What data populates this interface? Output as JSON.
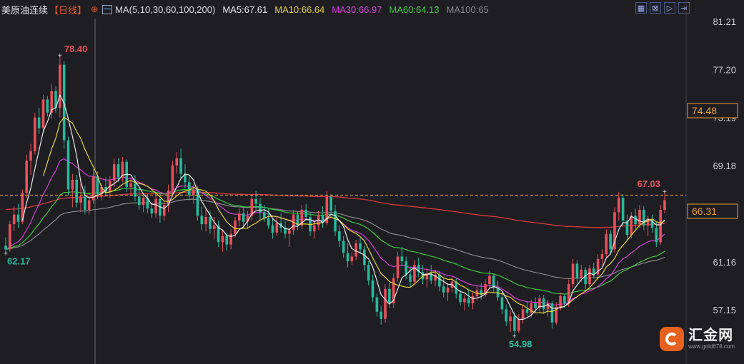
{
  "header": {
    "title": "美原油连续",
    "period": "【日线】",
    "ma_params": "MA(5,10,30,60,100,200)",
    "ma5": "MA5:67.61",
    "ma10": "MA10:66.64",
    "ma30": "MA30:66.97",
    "ma60": "MA60:64.13",
    "ma100": "MA100:65"
  },
  "logo": {
    "name": "汇金网",
    "url": "www.gold678.com"
  },
  "colors": {
    "background": "#1d1d22",
    "up": "#e8505b",
    "down": "#26b89a",
    "ma5": "#e8e8e8",
    "ma10": "#e6d33a",
    "ma30": "#d63dd6",
    "ma60": "#3cc83c",
    "ma100": "#8a8a8a",
    "ma200": "#d93a3a",
    "price_line": "#f0a030"
  },
  "chart_data": {
    "type": "candlestick",
    "y_ticks": [
      "81.21",
      "77.20",
      "73.19",
      "69.18",
      "61.16",
      "57.15"
    ],
    "ylim": [
      54.0,
      81.21
    ],
    "current_price": "66.31",
    "reference_price": "74.48",
    "annotations": {
      "high": "78.40",
      "low": "54.98",
      "start_low": "62.17",
      "recent_high": "67.03"
    },
    "candles": [
      [
        62.5,
        63.2,
        61.9,
        62.2
      ],
      [
        62.2,
        64.6,
        62.0,
        64.3
      ],
      [
        64.3,
        65.8,
        63.7,
        65.1
      ],
      [
        65.1,
        66.0,
        64.0,
        64.5
      ],
      [
        64.5,
        67.2,
        64.3,
        66.9
      ],
      [
        66.9,
        70.1,
        66.5,
        69.6
      ],
      [
        69.6,
        71.0,
        68.4,
        70.4
      ],
      [
        70.4,
        73.6,
        70.1,
        73.2
      ],
      [
        73.2,
        74.0,
        71.8,
        72.3
      ],
      [
        72.3,
        75.1,
        71.9,
        74.7
      ],
      [
        74.7,
        75.0,
        73.3,
        73.6
      ],
      [
        73.6,
        76.0,
        73.1,
        75.4
      ],
      [
        75.4,
        75.8,
        73.6,
        74.0
      ],
      [
        74.0,
        78.4,
        73.2,
        77.6
      ],
      [
        77.6,
        77.9,
        70.6,
        71.3
      ],
      [
        71.3,
        71.6,
        66.7,
        67.2
      ],
      [
        67.2,
        68.5,
        65.7,
        68.0
      ],
      [
        68.0,
        68.4,
        65.7,
        66.1
      ],
      [
        66.1,
        67.7,
        65.3,
        66.6
      ],
      [
        66.6,
        67.5,
        65.1,
        65.5
      ],
      [
        65.5,
        66.8,
        65.1,
        66.3
      ],
      [
        66.3,
        68.9,
        66.0,
        68.3
      ],
      [
        68.3,
        68.7,
        66.4,
        66.8
      ],
      [
        66.8,
        67.6,
        66.3,
        67.4
      ],
      [
        67.4,
        68.2,
        66.6,
        67.0
      ],
      [
        67.0,
        68.3,
        66.5,
        67.9
      ],
      [
        67.9,
        69.8,
        67.4,
        69.3
      ],
      [
        69.3,
        69.8,
        67.8,
        68.2
      ],
      [
        68.2,
        69.9,
        67.8,
        69.5
      ],
      [
        69.5,
        69.7,
        67.0,
        67.4
      ],
      [
        67.4,
        68.1,
        66.7,
        67.7
      ],
      [
        67.7,
        68.4,
        66.2,
        66.6
      ],
      [
        66.6,
        67.3,
        65.5,
        65.9
      ],
      [
        65.9,
        66.8,
        65.3,
        66.5
      ],
      [
        66.5,
        66.8,
        65.2,
        65.6
      ],
      [
        65.6,
        66.1,
        64.8,
        65.2
      ],
      [
        65.2,
        66.9,
        64.8,
        66.4
      ],
      [
        66.4,
        66.9,
        64.4,
        65.0
      ],
      [
        65.0,
        66.2,
        64.6,
        65.9
      ],
      [
        65.9,
        67.6,
        65.3,
        67.1
      ],
      [
        67.1,
        69.6,
        66.6,
        69.2
      ],
      [
        69.2,
        70.3,
        68.5,
        69.8
      ],
      [
        69.8,
        70.6,
        68.1,
        68.5
      ],
      [
        68.5,
        69.3,
        67.3,
        67.8
      ],
      [
        67.8,
        68.4,
        66.3,
        66.7
      ],
      [
        66.7,
        67.6,
        66.0,
        67.2
      ],
      [
        67.2,
        67.5,
        64.6,
        65.0
      ],
      [
        65.0,
        65.8,
        63.8,
        64.3
      ],
      [
        64.3,
        65.6,
        63.7,
        64.9
      ],
      [
        64.9,
        65.4,
        63.5,
        63.9
      ],
      [
        63.9,
        64.9,
        63.1,
        64.2
      ],
      [
        64.2,
        64.6,
        62.4,
        62.8
      ],
      [
        62.8,
        63.8,
        62.0,
        63.3
      ],
      [
        63.3,
        63.6,
        62.1,
        62.6
      ],
      [
        62.6,
        63.9,
        62.2,
        63.5
      ],
      [
        63.5,
        64.9,
        63.2,
        64.6
      ],
      [
        64.6,
        65.6,
        64.1,
        65.2
      ],
      [
        65.2,
        65.7,
        64.0,
        64.5
      ],
      [
        64.5,
        65.4,
        63.9,
        65.0
      ],
      [
        65.0,
        66.8,
        64.6,
        66.4
      ],
      [
        66.4,
        67.1,
        65.5,
        66.0
      ],
      [
        66.0,
        66.5,
        64.7,
        65.3
      ],
      [
        65.3,
        65.9,
        64.5,
        64.8
      ],
      [
        64.8,
        65.6,
        63.9,
        64.2
      ],
      [
        64.2,
        64.8,
        63.1,
        63.6
      ],
      [
        63.6,
        64.9,
        63.3,
        64.4
      ],
      [
        64.4,
        65.2,
        63.6,
        64.0
      ],
      [
        64.0,
        64.6,
        63.1,
        63.5
      ],
      [
        63.5,
        64.0,
        62.4,
        63.8
      ],
      [
        63.8,
        65.5,
        63.4,
        65.1
      ],
      [
        65.1,
        65.4,
        63.8,
        64.2
      ],
      [
        64.2,
        65.9,
        63.9,
        65.5
      ],
      [
        65.5,
        66.0,
        64.6,
        64.9
      ],
      [
        64.9,
        65.3,
        63.3,
        63.7
      ],
      [
        63.7,
        64.5,
        63.1,
        64.2
      ],
      [
        64.2,
        65.4,
        63.8,
        65.0
      ],
      [
        65.0,
        65.8,
        64.0,
        64.4
      ],
      [
        64.4,
        67.1,
        64.2,
        66.6
      ],
      [
        66.6,
        66.8,
        65.0,
        65.4
      ],
      [
        65.4,
        65.9,
        63.3,
        63.7
      ],
      [
        63.7,
        64.2,
        62.4,
        62.9
      ],
      [
        62.9,
        63.3,
        61.5,
        61.9
      ],
      [
        61.9,
        62.7,
        60.7,
        61.2
      ],
      [
        61.2,
        62.0,
        60.9,
        61.6
      ],
      [
        61.6,
        63.0,
        61.3,
        62.7
      ],
      [
        62.7,
        63.2,
        61.8,
        62.2
      ],
      [
        62.2,
        62.5,
        60.4,
        60.9
      ],
      [
        60.9,
        61.2,
        59.2,
        59.6
      ],
      [
        59.6,
        60.1,
        57.8,
        58.2
      ],
      [
        58.2,
        58.5,
        56.6,
        57.0
      ],
      [
        57.0,
        57.5,
        55.9,
        56.4
      ],
      [
        56.4,
        59.3,
        56.1,
        58.9
      ],
      [
        58.9,
        59.4,
        57.3,
        57.7
      ],
      [
        57.7,
        60.2,
        57.3,
        59.8
      ],
      [
        59.8,
        62.0,
        59.5,
        61.6
      ],
      [
        61.6,
        62.4,
        60.8,
        61.2
      ],
      [
        61.2,
        61.6,
        59.7,
        60.1
      ],
      [
        60.1,
        60.8,
        59.1,
        59.5
      ],
      [
        59.5,
        61.3,
        59.2,
        60.9
      ],
      [
        60.9,
        61.5,
        59.9,
        60.3
      ],
      [
        60.3,
        60.9,
        59.3,
        59.7
      ],
      [
        59.7,
        60.6,
        59.0,
        60.2
      ],
      [
        60.2,
        60.9,
        59.3,
        59.6
      ],
      [
        59.6,
        60.5,
        59.1,
        60.1
      ],
      [
        60.1,
        60.4,
        58.7,
        59.1
      ],
      [
        59.1,
        59.8,
        58.2,
        58.6
      ],
      [
        58.6,
        59.4,
        57.9,
        59.0
      ],
      [
        59.0,
        59.9,
        58.6,
        59.5
      ],
      [
        59.5,
        59.8,
        58.1,
        58.5
      ],
      [
        58.5,
        58.8,
        57.5,
        57.8
      ],
      [
        57.8,
        58.4,
        57.1,
        58.1
      ],
      [
        58.1,
        58.9,
        57.4,
        57.7
      ],
      [
        57.7,
        58.6,
        57.2,
        58.3
      ],
      [
        58.3,
        59.2,
        57.9,
        58.8
      ],
      [
        58.8,
        59.4,
        58.0,
        58.4
      ],
      [
        58.4,
        59.7,
        58.2,
        59.3
      ],
      [
        59.3,
        60.4,
        58.9,
        60.0
      ],
      [
        60.0,
        60.2,
        58.6,
        59.0
      ],
      [
        59.0,
        59.6,
        57.9,
        58.2
      ],
      [
        58.2,
        58.6,
        56.8,
        57.2
      ],
      [
        57.2,
        57.6,
        55.8,
        56.2
      ],
      [
        56.2,
        57.1,
        55.3,
        56.6
      ],
      [
        56.6,
        56.9,
        54.98,
        55.4
      ],
      [
        55.4,
        56.8,
        55.2,
        56.4
      ],
      [
        56.4,
        57.6,
        56.0,
        57.2
      ],
      [
        57.2,
        57.9,
        56.6,
        56.9
      ],
      [
        56.9,
        58.0,
        56.5,
        57.7
      ],
      [
        57.7,
        58.2,
        56.9,
        57.3
      ],
      [
        57.3,
        58.4,
        56.9,
        58.1
      ],
      [
        58.1,
        58.4,
        56.8,
        57.2
      ],
      [
        57.2,
        58.0,
        56.6,
        57.7
      ],
      [
        57.7,
        57.9,
        55.6,
        56.1
      ],
      [
        56.1,
        57.8,
        55.9,
        57.4
      ],
      [
        57.4,
        58.6,
        57.1,
        58.3
      ],
      [
        58.3,
        58.5,
        57.3,
        57.7
      ],
      [
        57.7,
        59.7,
        57.4,
        59.3
      ],
      [
        59.3,
        61.4,
        59.0,
        61.0
      ],
      [
        61.0,
        61.3,
        59.4,
        59.8
      ],
      [
        59.8,
        60.9,
        59.5,
        60.5
      ],
      [
        60.5,
        60.7,
        58.9,
        59.3
      ],
      [
        59.3,
        60.9,
        59.0,
        60.6
      ],
      [
        60.6,
        61.1,
        59.8,
        60.1
      ],
      [
        60.1,
        61.8,
        59.9,
        61.4
      ],
      [
        61.4,
        62.2,
        60.9,
        61.8
      ],
      [
        61.8,
        63.9,
        61.5,
        63.5
      ],
      [
        63.5,
        63.8,
        61.8,
        62.2
      ],
      [
        62.2,
        65.7,
        61.9,
        65.3
      ],
      [
        65.3,
        67.0,
        64.6,
        66.5
      ],
      [
        66.5,
        66.8,
        64.2,
        64.6
      ],
      [
        64.6,
        65.1,
        63.0,
        63.4
      ],
      [
        63.4,
        65.3,
        63.1,
        65.0
      ],
      [
        65.0,
        65.6,
        63.9,
        64.3
      ],
      [
        64.3,
        65.9,
        64.0,
        65.5
      ],
      [
        65.5,
        65.8,
        63.8,
        64.2
      ],
      [
        64.2,
        65.0,
        63.3,
        64.7
      ],
      [
        64.7,
        65.1,
        63.6,
        64.0
      ],
      [
        64.0,
        64.5,
        62.4,
        62.8
      ],
      [
        62.8,
        65.9,
        62.6,
        65.5
      ],
      [
        65.5,
        67.03,
        65.2,
        66.31
      ]
    ]
  }
}
